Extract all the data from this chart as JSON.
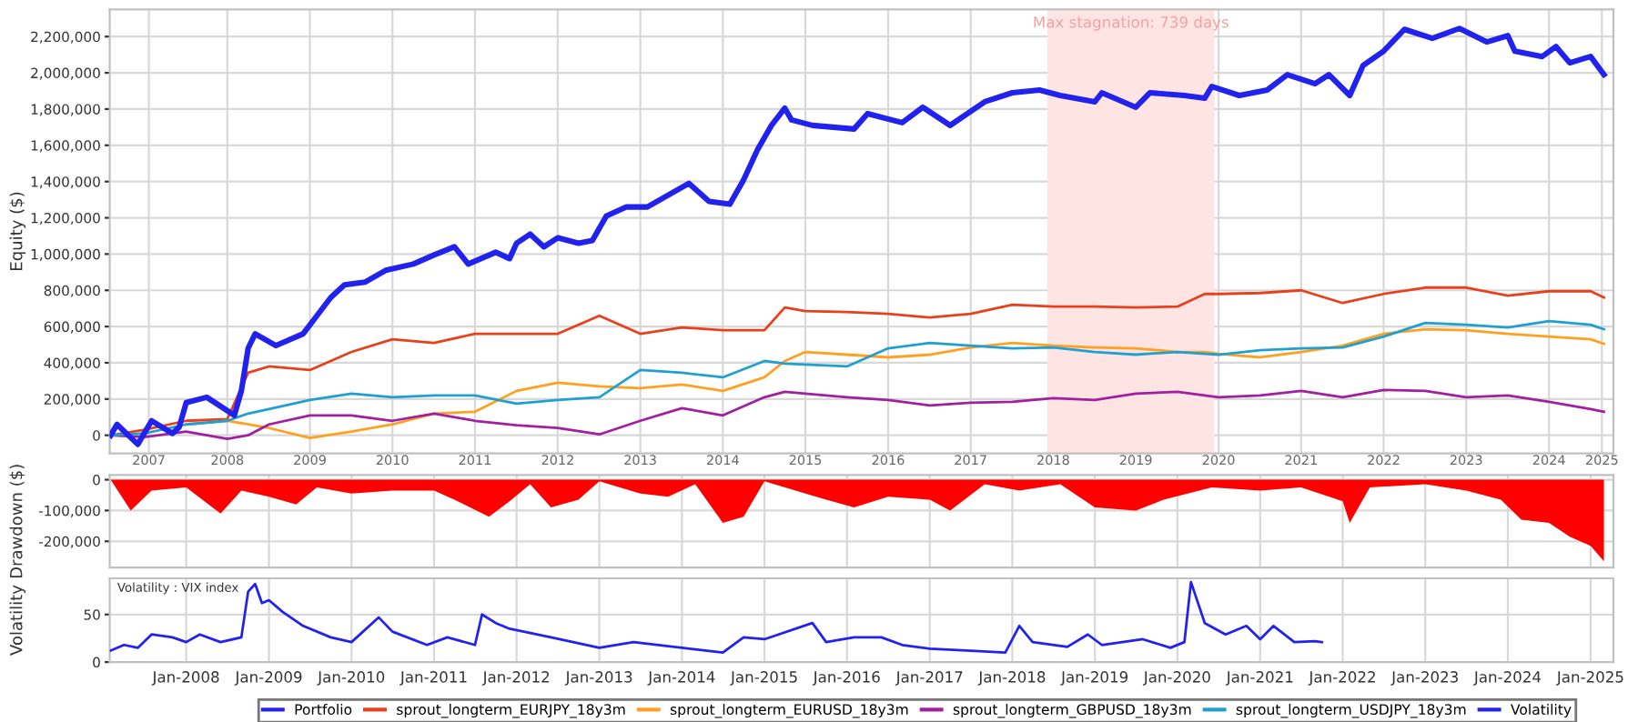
{
  "chart_data": [
    {
      "type": "line",
      "ylabel": "Equity ($)",
      "grid": true,
      "legend": "bottom",
      "x": [
        "2007-02",
        "2007-07",
        "2008-01",
        "2008-07",
        "2008-10",
        "2009-01",
        "2009-07",
        "2010-01",
        "2010-07",
        "2011-01",
        "2011-07",
        "2012-01",
        "2012-07",
        "2013-01",
        "2013-07",
        "2014-01",
        "2014-07",
        "2015-01",
        "2015-04",
        "2015-07",
        "2016-01",
        "2016-07",
        "2017-01",
        "2017-07",
        "2018-01",
        "2018-07",
        "2019-01",
        "2019-07",
        "2020-01",
        "2020-05",
        "2020-07",
        "2021-01",
        "2021-07",
        "2022-01",
        "2022-07",
        "2023-01",
        "2023-07",
        "2024-01",
        "2024-07",
        "2025-01",
        "2025-03"
      ],
      "series": [
        {
          "name": "Portfolio",
          "color": "#2222ee",
          "x": [
            "2007-02",
            "2007-03",
            "2007-06",
            "2007-08",
            "2007-11",
            "2007-12",
            "2008-01",
            "2008-04",
            "2008-08",
            "2008-09",
            "2008-10",
            "2008-11",
            "2009-02",
            "2009-06",
            "2009-10",
            "2009-12",
            "2010-03",
            "2010-06",
            "2010-10",
            "2011-01",
            "2011-04",
            "2011-06",
            "2011-10",
            "2011-12",
            "2012-01",
            "2012-03",
            "2012-05",
            "2012-07",
            "2012-10",
            "2012-12",
            "2013-02",
            "2013-05",
            "2013-08",
            "2013-11",
            "2014-02",
            "2014-05",
            "2014-08",
            "2014-10",
            "2014-12",
            "2015-02",
            "2015-04",
            "2015-05",
            "2015-08",
            "2016-02",
            "2016-04",
            "2016-09",
            "2016-12",
            "2017-04",
            "2017-09",
            "2018-01",
            "2018-05",
            "2018-08",
            "2019-01",
            "2019-02",
            "2019-07",
            "2019-09",
            "2020-02",
            "2020-05",
            "2020-06",
            "2020-10",
            "2021-02",
            "2021-05",
            "2021-09",
            "2021-11",
            "2022-02",
            "2022-04",
            "2022-07",
            "2022-10",
            "2023-02",
            "2023-06",
            "2023-10",
            "2024-01",
            "2024-02",
            "2024-06",
            "2024-08",
            "2024-10",
            "2025-01",
            "2025-03"
          ],
          "values": [
            0,
            60000,
            -50000,
            80000,
            10000,
            45000,
            180000,
            210000,
            110000,
            245000,
            480000,
            560000,
            495000,
            560000,
            760000,
            830000,
            845000,
            910000,
            945000,
            995000,
            1040000,
            945000,
            1010000,
            975000,
            1060000,
            1110000,
            1040000,
            1090000,
            1060000,
            1075000,
            1210000,
            1260000,
            1260000,
            1325000,
            1390000,
            1290000,
            1275000,
            1410000,
            1575000,
            1710000,
            1805000,
            1740000,
            1710000,
            1690000,
            1775000,
            1725000,
            1810000,
            1710000,
            1840000,
            1890000,
            1905000,
            1875000,
            1840000,
            1890000,
            1810000,
            1890000,
            1875000,
            1860000,
            1925000,
            1875000,
            1905000,
            1990000,
            1940000,
            1990000,
            1875000,
            2040000,
            2120000,
            2240000,
            2190000,
            2245000,
            2170000,
            2205000,
            2120000,
            2090000,
            2145000,
            2055000,
            2090000,
            1990000
          ]
        },
        {
          "name": "sprout_longterm_EURJPY_18y3m",
          "color": "#e8401c",
          "values": [
            0,
            30000,
            80000,
            90000,
            345000,
            380000,
            360000,
            460000,
            530000,
            510000,
            560000,
            560000,
            560000,
            660000,
            560000,
            595000,
            580000,
            580000,
            705000,
            685000,
            680000,
            670000,
            650000,
            670000,
            720000,
            710000,
            710000,
            705000,
            710000,
            780000,
            780000,
            785000,
            800000,
            730000,
            780000,
            815000,
            815000,
            770000,
            795000,
            795000,
            760000
          ]
        },
        {
          "name": "sprout_longterm_EURUSD_18y3m",
          "color": "#ffa020",
          "values": [
            null,
            null,
            60000,
            80000,
            60000,
            40000,
            -15000,
            20000,
            60000,
            120000,
            130000,
            245000,
            290000,
            270000,
            260000,
            280000,
            245000,
            320000,
            410000,
            460000,
            445000,
            430000,
            445000,
            485000,
            510000,
            495000,
            485000,
            480000,
            460000,
            460000,
            450000,
            430000,
            460000,
            495000,
            560000,
            585000,
            580000,
            560000,
            545000,
            530000,
            505000
          ]
        },
        {
          "name": "sprout_longterm_GBPUSD_18y3m",
          "color": "#a020a0",
          "values": [
            0,
            -10000,
            20000,
            -20000,
            0,
            60000,
            110000,
            110000,
            80000,
            120000,
            80000,
            55000,
            40000,
            5000,
            80000,
            150000,
            110000,
            210000,
            240000,
            230000,
            210000,
            195000,
            165000,
            180000,
            185000,
            205000,
            195000,
            230000,
            240000,
            220000,
            210000,
            220000,
            245000,
            210000,
            250000,
            245000,
            210000,
            220000,
            185000,
            145000,
            130000
          ]
        },
        {
          "name": "sprout_longterm_USDJPY_18y3m",
          "color": "#20a0d0",
          "values": [
            0,
            10000,
            60000,
            80000,
            120000,
            145000,
            195000,
            230000,
            210000,
            220000,
            220000,
            175000,
            195000,
            210000,
            360000,
            345000,
            320000,
            410000,
            395000,
            390000,
            380000,
            480000,
            510000,
            495000,
            480000,
            485000,
            460000,
            445000,
            460000,
            450000,
            445000,
            470000,
            480000,
            485000,
            545000,
            620000,
            610000,
            595000,
            630000,
            610000,
            585000
          ]
        }
      ],
      "xlim": [
        "2007-01-28",
        "2025-04-12"
      ],
      "xticks": [
        {
          "value": "2007-07-20",
          "label": "2007"
        },
        {
          "value": "2008-07-01",
          "label": "2008"
        },
        {
          "value": "2009-07-01",
          "label": "2009"
        },
        {
          "value": "2010-07-01",
          "label": "2010"
        },
        {
          "value": "2011-07-01",
          "label": "2011"
        },
        {
          "value": "2012-07-01",
          "label": "2012"
        },
        {
          "value": "2013-07-01",
          "label": "2013"
        },
        {
          "value": "2014-07-01",
          "label": "2014"
        },
        {
          "value": "2015-07-01",
          "label": "2015"
        },
        {
          "value": "2016-07-01",
          "label": "2016"
        },
        {
          "value": "2017-07-01",
          "label": "2017"
        },
        {
          "value": "2018-07-01",
          "label": "2018"
        },
        {
          "value": "2019-07-01",
          "label": "2019"
        },
        {
          "value": "2020-07-01",
          "label": "2020"
        },
        {
          "value": "2021-07-01",
          "label": "2021"
        },
        {
          "value": "2022-07-01",
          "label": "2022"
        },
        {
          "value": "2023-07-01",
          "label": "2023"
        },
        {
          "value": "2024-07-01",
          "label": "2024"
        },
        {
          "value": "2025-02-20",
          "label": "2025"
        }
      ],
      "ylim": [
        -100000,
        2350000
      ],
      "yticks": [
        0,
        {
          "value": 200000,
          "label": "200,000"
        },
        {
          "value": 400000,
          "label": "400,000"
        },
        {
          "value": 600000,
          "label": "600,000"
        },
        {
          "value": 800000,
          "label": "800,000"
        },
        {
          "value": 1000000,
          "label": "1,000,000"
        },
        {
          "value": 1200000,
          "label": "1,200,000"
        },
        {
          "value": 1400000,
          "label": "1,400,000"
        },
        {
          "value": 1600000,
          "label": "1,600,000"
        },
        {
          "value": 1800000,
          "label": "1,800,000"
        },
        {
          "value": 2000000,
          "label": "2,000,000"
        },
        {
          "value": 2200000,
          "label": "2,200,000"
        }
      ],
      "bands": [
        {
          "axis": "x",
          "from": "2018-06-05",
          "to": "2020-06-13",
          "label": "Max stagnation: 739 days",
          "color": "#ffe4e4"
        }
      ]
    },
    {
      "type": "area",
      "ylabel": "Drawdown ($)",
      "grid": true,
      "tick_labels": "y",
      "series": [
        {
          "color": "#ff0000",
          "x": [
            "2007-02",
            "2007-05",
            "2007-08",
            "2008-01",
            "2008-06",
            "2008-09",
            "2009-01",
            "2009-05",
            "2009-08",
            "2010-01",
            "2010-07",
            "2011-01",
            "2011-04",
            "2011-09",
            "2011-12",
            "2012-03",
            "2012-06",
            "2012-10",
            "2013-01",
            "2013-07",
            "2013-11",
            "2014-03",
            "2014-07",
            "2014-10",
            "2015-01",
            "2015-07",
            "2015-10",
            "2016-02",
            "2016-07",
            "2017-01",
            "2017-04",
            "2017-09",
            "2018-02",
            "2018-08",
            "2019-01",
            "2019-07",
            "2019-11",
            "2020-06",
            "2021-01",
            "2021-07",
            "2022-01",
            "2022-02",
            "2022-05",
            "2023-01",
            "2023-07",
            "2023-12",
            "2024-03",
            "2024-07",
            "2024-10",
            "2025-01",
            "2025-03"
          ],
          "values": [
            0,
            -100000,
            -35000,
            -25000,
            -110000,
            -35000,
            -55000,
            -80000,
            -25000,
            -45000,
            -35000,
            -35000,
            -65000,
            -120000,
            -70000,
            -15000,
            -90000,
            -65000,
            -5000,
            -45000,
            -55000,
            -15000,
            -140000,
            -120000,
            -5000,
            -45000,
            -65000,
            -90000,
            -55000,
            -65000,
            -100000,
            -15000,
            -35000,
            -15000,
            -90000,
            -100000,
            -65000,
            -25000,
            -35000,
            -25000,
            -70000,
            -140000,
            -25000,
            -15000,
            -35000,
            -65000,
            -130000,
            -140000,
            -185000,
            -215000,
            -265000
          ]
        }
      ],
      "xlim": [
        "2007-01-28",
        "2025-04-12"
      ],
      "ylim": [
        -285000,
        15000
      ],
      "yticks": [
        0,
        {
          "value": -100000,
          "label": "-100,000"
        },
        {
          "value": -200000,
          "label": "-200,000"
        }
      ]
    },
    {
      "type": "line",
      "ylabel": "Volatility",
      "grid": true,
      "legend": "bottom",
      "annotations": [
        "Volatility : VIX index"
      ],
      "series": [
        {
          "name": "Volatility",
          "color": "#2222ee",
          "x": [
            "2007-02",
            "2007-04",
            "2007-06",
            "2007-08",
            "2007-11",
            "2008-01",
            "2008-03",
            "2008-06",
            "2008-09",
            "2008-10",
            "2008-11",
            "2008-12",
            "2009-01",
            "2009-03",
            "2009-06",
            "2009-10",
            "2010-01",
            "2010-05",
            "2010-07",
            "2010-12",
            "2011-03",
            "2011-07",
            "2011-08",
            "2011-10",
            "2011-12",
            "2012-06",
            "2013-01",
            "2013-06",
            "2014-01",
            "2014-07",
            "2014-10",
            "2015-01",
            "2015-08",
            "2015-10",
            "2016-02",
            "2016-06",
            "2016-09",
            "2017-01",
            "2017-07",
            "2017-12",
            "2018-02",
            "2018-04",
            "2018-09",
            "2018-12",
            "2019-02",
            "2019-08",
            "2019-12",
            "2020-02",
            "2020-03",
            "2020-05",
            "2020-08",
            "2020-11",
            "2021-01",
            "2021-03",
            "2021-06",
            "2021-09",
            "2021-10"
          ],
          "values": [
            12,
            18,
            15,
            29,
            26,
            21,
            29,
            21,
            26,
            74,
            82,
            62,
            65,
            53,
            38,
            26,
            21,
            47,
            32,
            18,
            26,
            18,
            50,
            41,
            35,
            26,
            15,
            21,
            15,
            10,
            26,
            24,
            41,
            21,
            26,
            26,
            18,
            14,
            12,
            10,
            38,
            21,
            16,
            29,
            18,
            24,
            15,
            21,
            84,
            41,
            29,
            38,
            24,
            38,
            21,
            22,
            21
          ]
        }
      ],
      "xlim": [
        "2007-01-28",
        "2025-04-12"
      ],
      "xticks": [
        {
          "value": "2008-01-01",
          "label": "Jan-2008"
        },
        {
          "value": "2009-01-01",
          "label": "Jan-2009"
        },
        {
          "value": "2010-01-01",
          "label": "Jan-2010"
        },
        {
          "value": "2011-01-01",
          "label": "Jan-2011"
        },
        {
          "value": "2012-01-01",
          "label": "Jan-2012"
        },
        {
          "value": "2013-01-01",
          "label": "Jan-2013"
        },
        {
          "value": "2014-01-01",
          "label": "Jan-2014"
        },
        {
          "value": "2015-01-01",
          "label": "Jan-2015"
        },
        {
          "value": "2016-01-01",
          "label": "Jan-2016"
        },
        {
          "value": "2017-01-01",
          "label": "Jan-2017"
        },
        {
          "value": "2018-01-01",
          "label": "Jan-2018"
        },
        {
          "value": "2019-01-01",
          "label": "Jan-2019"
        },
        {
          "value": "2020-01-01",
          "label": "Jan-2020"
        },
        {
          "value": "2021-01-01",
          "label": "Jan-2021"
        },
        {
          "value": "2022-01-01",
          "label": "Jan-2022"
        },
        {
          "value": "2023-01-01",
          "label": "Jan-2023"
        },
        {
          "value": "2024-01-01",
          "label": "Jan-2024"
        },
        {
          "value": "2025-01-01",
          "label": "Jan-2025"
        }
      ],
      "ylim": [
        0,
        88
      ],
      "yticks": [
        0,
        50
      ]
    }
  ]
}
